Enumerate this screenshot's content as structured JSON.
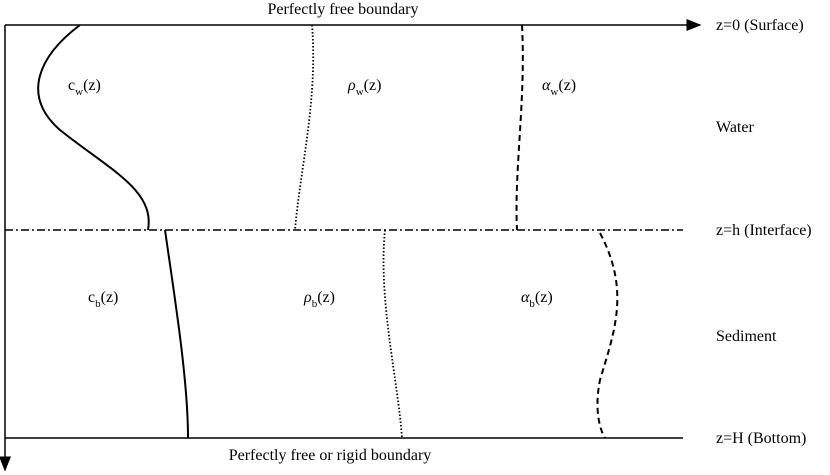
{
  "top_boundary": "Perfectly free boundary",
  "bottom_boundary": "Perfectly free or rigid boundary",
  "levels": [
    {
      "label": "z=0 (Surface)"
    },
    {
      "label": "z=h (Interface)"
    },
    {
      "label": "z=H (Bottom)"
    }
  ],
  "layers": [
    "Water",
    "Sediment"
  ],
  "profiles": [
    {
      "base": "c",
      "sub": "w",
      "arg": "(z)"
    },
    {
      "base": "ρ",
      "sub": "w",
      "arg": "(z)"
    },
    {
      "base": "α",
      "sub": "w",
      "arg": "(z)"
    },
    {
      "base": "c",
      "sub": "b",
      "arg": "(z)"
    },
    {
      "base": "ρ",
      "sub": "b",
      "arg": "(z)"
    },
    {
      "base": "α",
      "sub": "b",
      "arg": "(z)"
    }
  ]
}
